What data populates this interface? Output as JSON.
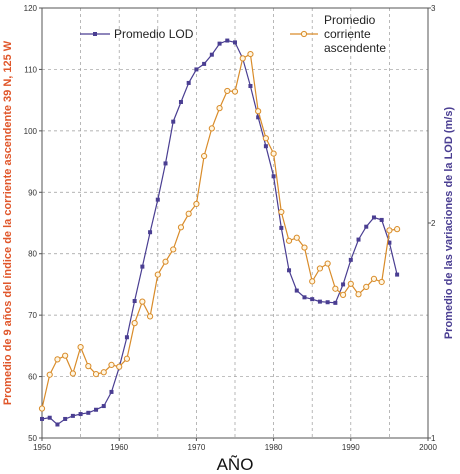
{
  "chart_data": {
    "type": "line",
    "xlabel": "AÑO",
    "ylabel_left": "Promedio de 9 años del índice de la corriente ascendente 39 N, 125 W",
    "ylabel_right": "Promedio de las variaciones de la LOD (m/s)",
    "xlim": [
      1950,
      2000
    ],
    "ylim_left": [
      50,
      120
    ],
    "ylim_right": [
      1,
      3
    ],
    "x_ticks": [
      "1950",
      "1960",
      "1970",
      "1980",
      "1990",
      "2000"
    ],
    "y_ticks_left": [
      "50",
      "60",
      "70",
      "80",
      "90",
      "100",
      "110",
      "120"
    ],
    "y_ticks_right": [
      "1",
      "2",
      "3"
    ],
    "grid": true,
    "legend_position": "top",
    "series": [
      {
        "name": "Promedio LOD",
        "axis": "left",
        "color": "#4a3e92",
        "marker": "square",
        "x": [
          1950,
          1951,
          1952,
          1953,
          1954,
          1955,
          1956,
          1957,
          1958,
          1959,
          1960,
          1961,
          1962,
          1963,
          1964,
          1965,
          1966,
          1967,
          1968,
          1969,
          1970,
          1971,
          1972,
          1973,
          1974,
          1975,
          1976,
          1977,
          1978,
          1979,
          1980,
          1981,
          1982,
          1983,
          1984,
          1985,
          1986,
          1987,
          1988,
          1989,
          1990,
          1991,
          1992,
          1993,
          1994,
          1995,
          1996
        ],
        "values": [
          53.1,
          53.3,
          52.2,
          53.1,
          53.6,
          53.9,
          54.1,
          54.6,
          55.2,
          57.5,
          61.5,
          66.4,
          72.3,
          77.9,
          83.5,
          88.8,
          94.7,
          101.5,
          104.7,
          107.8,
          110.0,
          110.9,
          112.4,
          114.2,
          114.7,
          114.4,
          111.8,
          107.3,
          102.2,
          97.5,
          92.6,
          84.2,
          77.3,
          74.0,
          72.9,
          72.6,
          72.2,
          72.1,
          72.0,
          75.0,
          79.0,
          82.3,
          84.4,
          85.9,
          85.5,
          81.8,
          76.6
        ]
      },
      {
        "name": "Promedio corriente ascendente",
        "axis": "left",
        "color": "#d98c2a",
        "marker": "circle",
        "x": [
          1950,
          1951,
          1952,
          1953,
          1954,
          1955,
          1956,
          1957,
          1958,
          1959,
          1960,
          1961,
          1962,
          1963,
          1964,
          1965,
          1966,
          1967,
          1968,
          1969,
          1970,
          1971,
          1972,
          1973,
          1974,
          1975,
          1976,
          1977,
          1978,
          1979,
          1980,
          1981,
          1982,
          1983,
          1984,
          1985,
          1986,
          1987,
          1988,
          1989,
          1990,
          1991,
          1992,
          1993,
          1994,
          1995,
          1996
        ],
        "values": [
          54.8,
          60.3,
          62.8,
          63.4,
          60.5,
          64.8,
          61.7,
          60.4,
          60.7,
          61.9,
          61.6,
          62.9,
          68.7,
          72.2,
          69.8,
          76.6,
          78.7,
          80.7,
          84.3,
          86.5,
          88.1,
          95.9,
          100.4,
          103.7,
          106.5,
          106.4,
          111.8,
          112.5,
          103.2,
          98.8,
          96.3,
          86.8,
          82.1,
          82.6,
          81.0,
          75.5,
          77.6,
          78.4,
          74.3,
          73.3,
          75.1,
          73.4,
          74.6,
          75.9,
          75.4,
          83.8,
          84.0
        ]
      }
    ]
  }
}
